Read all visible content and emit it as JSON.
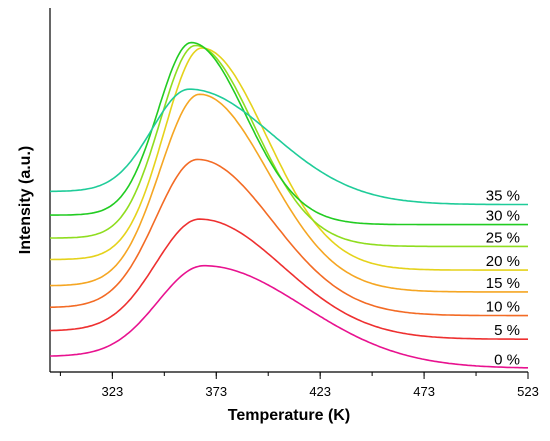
{
  "chart_data": {
    "type": "line",
    "title": "",
    "xlabel": "Temperature (K)",
    "ylabel": "Intensity (a.u.)",
    "xlim": [
      293,
      523
    ],
    "ylim": [
      0,
      1
    ],
    "x_ticks": [
      323,
      373,
      423,
      473,
      523
    ],
    "y_ticks_shown": false,
    "grid": false,
    "legend_placement": "inline labels at right end of curves",
    "y_axis_units": "normalized 0-1 from bottom to top of plot area",
    "series": [
      {
        "name": "0 %",
        "color": "#e8128f",
        "baseline": 0.043,
        "peak_x": 367,
        "peak": 0.292,
        "end": 0.01,
        "wl": 22,
        "wr": 48
      },
      {
        "name": "5 %",
        "color": "#ee3030",
        "baseline": 0.113,
        "peak_x": 365,
        "peak": 0.42,
        "end": 0.09,
        "wl": 21,
        "wr": 40
      },
      {
        "name": "10 %",
        "color": "#f36b25",
        "baseline": 0.177,
        "peak_x": 364,
        "peak": 0.584,
        "end": 0.155,
        "wl": 20,
        "wr": 36
      },
      {
        "name": "15 %",
        "color": "#f5a623",
        "baseline": 0.237,
        "peak_x": 365,
        "peak": 0.763,
        "end": 0.22,
        "wl": 19,
        "wr": 33
      },
      {
        "name": "20 %",
        "color": "#e5d21b",
        "baseline": 0.309,
        "peak_x": 366,
        "peak": 0.89,
        "end": 0.28,
        "wl": 18,
        "wr": 31
      },
      {
        "name": "25 %",
        "color": "#8fdd1f",
        "baseline": 0.368,
        "peak_x": 363,
        "peak": 0.897,
        "end": 0.345,
        "wl": 17,
        "wr": 28
      },
      {
        "name": "30 %",
        "color": "#22cc22",
        "baseline": 0.431,
        "peak_x": 361,
        "peak": 0.905,
        "end": 0.405,
        "wl": 16,
        "wr": 26
      },
      {
        "name": "35 %",
        "color": "#1fcc99",
        "baseline": 0.496,
        "peak_x": 360,
        "peak": 0.777,
        "end": 0.46,
        "wl": 18,
        "wr": 40
      }
    ]
  }
}
